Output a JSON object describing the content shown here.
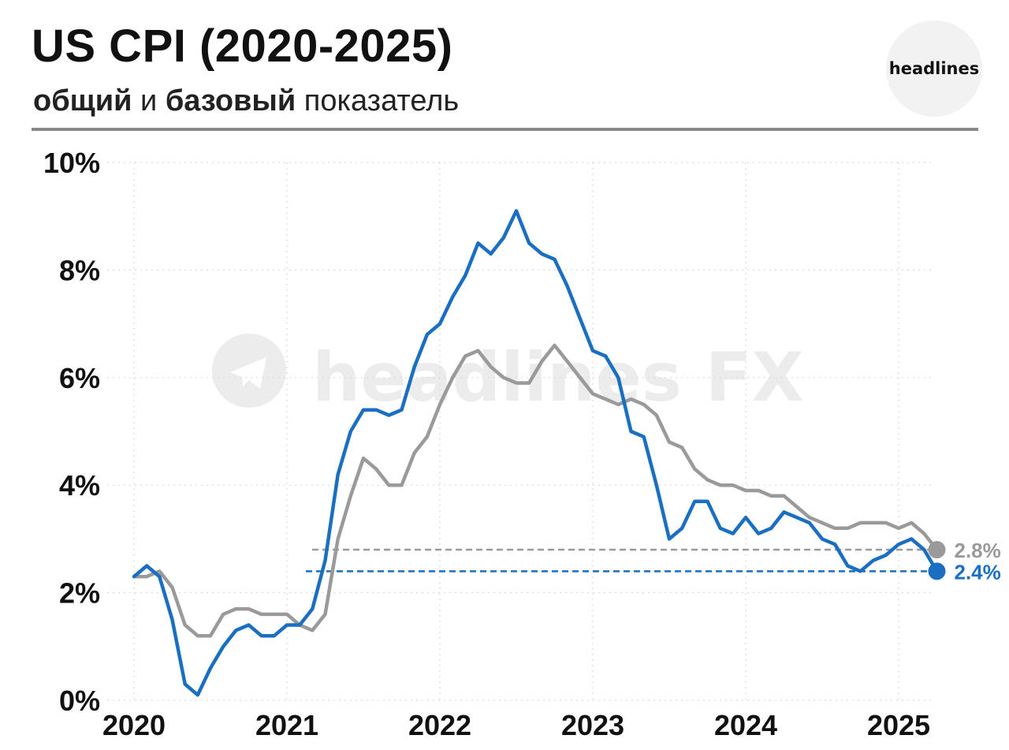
{
  "colors": {
    "headline": "#1a6fc2",
    "core": "#9a9a9a",
    "title": "#111111",
    "watermark": "#e6e6e6"
  },
  "header": {
    "title": "US CPI (2020-2025)",
    "subtitle_part1": "общий",
    "subtitle_part2": " и ",
    "subtitle_part3": "базовый",
    "subtitle_part4": " показатель",
    "brand": "headlines"
  },
  "watermark": {
    "text": "headlines FX",
    "icon": "telegram-icon"
  },
  "chart_data": {
    "type": "line",
    "ylim": [
      0,
      10
    ],
    "y_ticks": [
      {
        "value": 0,
        "label": "0%"
      },
      {
        "value": 2,
        "label": "2%"
      },
      {
        "value": 4,
        "label": "4%"
      },
      {
        "value": 6,
        "label": "6%"
      },
      {
        "value": 8,
        "label": "8%"
      },
      {
        "value": 10,
        "label": "10%"
      }
    ],
    "x_ticks": [
      {
        "value": "2020-01",
        "label": "2020"
      },
      {
        "value": "2021-01",
        "label": "2021"
      },
      {
        "value": "2022-01",
        "label": "2022"
      },
      {
        "value": "2023-01",
        "label": "2023"
      },
      {
        "value": "2024-01",
        "label": "2024"
      },
      {
        "value": "2025-01",
        "label": "2025"
      }
    ],
    "grid": true,
    "x_start": "2020-01",
    "series": [
      {
        "key": "headline",
        "values": [
          2.3,
          2.5,
          2.3,
          1.5,
          0.3,
          0.1,
          0.6,
          1.0,
          1.3,
          1.4,
          1.2,
          1.2,
          1.4,
          1.4,
          1.7,
          2.6,
          4.2,
          5.0,
          5.4,
          5.4,
          5.3,
          5.4,
          6.2,
          6.8,
          7.0,
          7.5,
          7.9,
          8.5,
          8.3,
          8.6,
          9.1,
          8.5,
          8.3,
          8.2,
          7.7,
          7.1,
          6.5,
          6.4,
          6.0,
          5.0,
          4.9,
          4.0,
          3.0,
          3.2,
          3.7,
          3.7,
          3.2,
          3.1,
          3.4,
          3.1,
          3.2,
          3.5,
          3.4,
          3.3,
          3.0,
          2.9,
          2.5,
          2.4,
          2.6,
          2.7,
          2.9,
          3.0,
          2.8,
          2.4
        ],
        "last_label": "2.4%"
      },
      {
        "key": "core",
        "values": [
          2.3,
          2.3,
          2.4,
          2.1,
          1.4,
          1.2,
          1.2,
          1.6,
          1.7,
          1.7,
          1.6,
          1.6,
          1.6,
          1.4,
          1.3,
          1.6,
          3.0,
          3.8,
          4.5,
          4.3,
          4.0,
          4.0,
          4.6,
          4.9,
          5.5,
          6.0,
          6.4,
          6.5,
          6.2,
          6.0,
          5.9,
          5.9,
          6.3,
          6.6,
          6.3,
          6.0,
          5.7,
          5.6,
          5.5,
          5.6,
          5.5,
          5.3,
          4.8,
          4.7,
          4.3,
          4.1,
          4.0,
          4.0,
          3.9,
          3.9,
          3.8,
          3.8,
          3.6,
          3.4,
          3.3,
          3.2,
          3.2,
          3.3,
          3.3,
          3.3,
          3.2,
          3.3,
          3.1,
          2.8
        ],
        "last_label": "2.8%"
      }
    ]
  }
}
